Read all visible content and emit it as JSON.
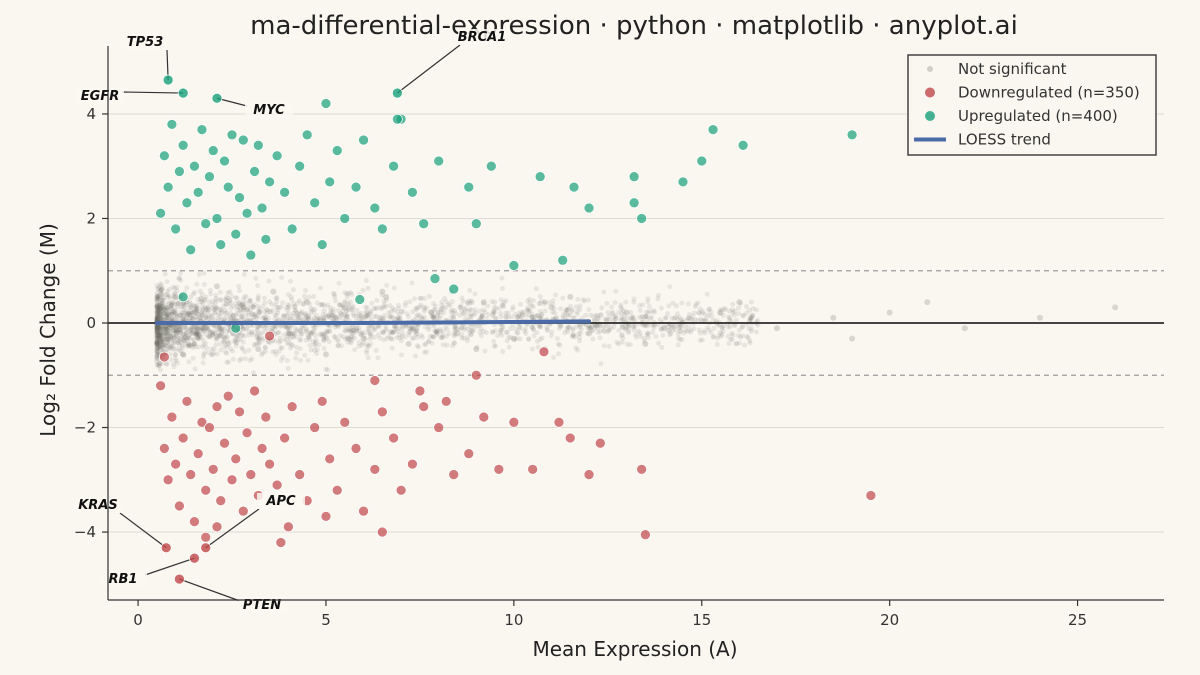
{
  "chart_data": {
    "type": "scatter",
    "title": "ma-differential-expression · python · matplotlib · anyplot.ai",
    "xlabel": "Mean Expression (A)",
    "ylabel": "Log₂ Fold Change (M)",
    "xlim": [
      -0.8,
      27.3
    ],
    "ylim": [
      -5.3,
      5.3
    ],
    "x_ticks": [
      0,
      5,
      10,
      15,
      20,
      25
    ],
    "y_ticks": [
      -4,
      -2,
      0,
      2,
      4
    ],
    "threshold_lines": [
      -1,
      1
    ],
    "grid": "horizontal",
    "legend_position": "top-right",
    "colors": {
      "not_significant": "#9a978f",
      "downregulated": "#c0464a",
      "upregulated": "#16a07a",
      "loess": "#4a6aa8",
      "background": "#faf7f1"
    },
    "series": [
      {
        "name": "Not significant",
        "note_sampled": true,
        "points": [
          [
            0.6,
            0.1
          ],
          [
            0.8,
            -0.3
          ],
          [
            1.0,
            0.5
          ],
          [
            1.2,
            -0.6
          ],
          [
            1.5,
            0.2
          ],
          [
            1.8,
            -0.1
          ],
          [
            2.1,
            0.7
          ],
          [
            2.4,
            -0.4
          ],
          [
            2.8,
            0.3
          ],
          [
            3.2,
            -0.5
          ],
          [
            3.6,
            0.6
          ],
          [
            4.0,
            -0.2
          ],
          [
            4.5,
            0.4
          ],
          [
            5.0,
            -0.6
          ],
          [
            5.5,
            0.3
          ],
          [
            6.0,
            -0.3
          ],
          [
            6.6,
            0.5
          ],
          [
            7.2,
            -0.4
          ],
          [
            7.8,
            0.2
          ],
          [
            8.5,
            -0.2
          ],
          [
            9.2,
            0.4
          ],
          [
            10.0,
            -0.3
          ],
          [
            11.0,
            0.3
          ],
          [
            12.0,
            -0.2
          ],
          [
            13.0,
            0.2
          ],
          [
            14.0,
            -0.1
          ],
          [
            15.5,
            0.2
          ],
          [
            17.0,
            -0.1
          ],
          [
            18.5,
            0.1
          ],
          [
            20.0,
            0.2
          ],
          [
            22.0,
            -0.1
          ],
          [
            24.0,
            0.1
          ],
          [
            26.0,
            0.3
          ],
          [
            6.5,
            0.6
          ],
          [
            9.0,
            -0.5
          ],
          [
            11.5,
            0.5
          ],
          [
            13.5,
            -0.4
          ],
          [
            16.0,
            0.4
          ],
          [
            19.0,
            -0.3
          ],
          [
            21.0,
            0.4
          ]
        ]
      },
      {
        "name": "Downregulated (n=350)",
        "note_sampled": true,
        "points": [
          [
            0.6,
            -1.2
          ],
          [
            0.7,
            -2.4
          ],
          [
            0.8,
            -3.0
          ],
          [
            0.9,
            -1.8
          ],
          [
            1.0,
            -2.7
          ],
          [
            1.1,
            -3.5
          ],
          [
            1.2,
            -2.2
          ],
          [
            1.3,
            -1.5
          ],
          [
            1.4,
            -2.9
          ],
          [
            1.5,
            -3.8
          ],
          [
            1.6,
            -2.5
          ],
          [
            1.7,
            -1.9
          ],
          [
            1.8,
            -3.2
          ],
          [
            1.9,
            -2.0
          ],
          [
            2.0,
            -2.8
          ],
          [
            2.1,
            -1.6
          ],
          [
            2.2,
            -3.4
          ],
          [
            2.3,
            -2.3
          ],
          [
            2.4,
            -1.4
          ],
          [
            2.5,
            -3.0
          ],
          [
            2.6,
            -2.6
          ],
          [
            2.7,
            -1.7
          ],
          [
            2.8,
            -3.6
          ],
          [
            2.9,
            -2.1
          ],
          [
            3.0,
            -2.9
          ],
          [
            3.1,
            -1.3
          ],
          [
            3.2,
            -3.3
          ],
          [
            3.3,
            -2.4
          ],
          [
            3.4,
            -1.8
          ],
          [
            3.5,
            -2.7
          ],
          [
            3.7,
            -3.1
          ],
          [
            3.9,
            -2.2
          ],
          [
            4.1,
            -1.6
          ],
          [
            4.3,
            -2.9
          ],
          [
            4.5,
            -3.4
          ],
          [
            4.7,
            -2.0
          ],
          [
            4.9,
            -1.5
          ],
          [
            5.1,
            -2.6
          ],
          [
            5.3,
            -3.2
          ],
          [
            5.5,
            -1.9
          ],
          [
            5.8,
            -2.4
          ],
          [
            6.0,
            -3.6
          ],
          [
            6.3,
            -2.8
          ],
          [
            6.5,
            -1.7
          ],
          [
            6.8,
            -2.2
          ],
          [
            7.0,
            -3.2
          ],
          [
            7.3,
            -2.7
          ],
          [
            7.6,
            -1.6
          ],
          [
            8.0,
            -2.0
          ],
          [
            8.4,
            -2.9
          ],
          [
            8.8,
            -2.5
          ],
          [
            9.2,
            -1.8
          ],
          [
            9.6,
            -2.8
          ],
          [
            10.0,
            -1.9
          ],
          [
            10.5,
            -2.8
          ],
          [
            11.2,
            -1.9
          ],
          [
            11.5,
            -2.2
          ],
          [
            12.0,
            -2.9
          ],
          [
            12.3,
            -2.3
          ],
          [
            13.4,
            -2.8
          ],
          [
            13.5,
            -4.05
          ],
          [
            19.5,
            -3.3
          ],
          [
            10.8,
            -0.55
          ],
          [
            3.5,
            -0.25
          ],
          [
            0.7,
            -0.65
          ],
          [
            6.3,
            -1.1
          ],
          [
            7.5,
            -1.3
          ],
          [
            8.2,
            -1.5
          ],
          [
            9.0,
            -1.0
          ],
          [
            4.0,
            -3.9
          ],
          [
            6.5,
            -4.0
          ],
          [
            5.0,
            -3.7
          ],
          [
            3.8,
            -4.2
          ],
          [
            1.8,
            -4.1
          ],
          [
            2.1,
            -3.9
          ]
        ]
      },
      {
        "name": "Upregulated (n=400)",
        "note_sampled": true,
        "points": [
          [
            0.6,
            2.1
          ],
          [
            0.7,
            3.2
          ],
          [
            0.8,
            2.6
          ],
          [
            0.9,
            3.8
          ],
          [
            1.0,
            1.8
          ],
          [
            1.1,
            2.9
          ],
          [
            1.2,
            3.4
          ],
          [
            1.3,
            2.3
          ],
          [
            1.4,
            1.4
          ],
          [
            1.5,
            3.0
          ],
          [
            1.6,
            2.5
          ],
          [
            1.7,
            3.7
          ],
          [
            1.8,
            1.9
          ],
          [
            1.9,
            2.8
          ],
          [
            2.0,
            3.3
          ],
          [
            2.1,
            2.0
          ],
          [
            2.2,
            1.5
          ],
          [
            2.3,
            3.1
          ],
          [
            2.4,
            2.6
          ],
          [
            2.5,
            3.6
          ],
          [
            2.6,
            1.7
          ],
          [
            2.7,
            2.4
          ],
          [
            2.8,
            3.5
          ],
          [
            2.9,
            2.1
          ],
          [
            3.0,
            1.3
          ],
          [
            3.1,
            2.9
          ],
          [
            3.2,
            3.4
          ],
          [
            3.3,
            2.2
          ],
          [
            3.4,
            1.6
          ],
          [
            3.5,
            2.7
          ],
          [
            3.7,
            3.2
          ],
          [
            3.9,
            2.5
          ],
          [
            4.1,
            1.8
          ],
          [
            4.3,
            3.0
          ],
          [
            4.5,
            3.6
          ],
          [
            4.7,
            2.3
          ],
          [
            4.9,
            1.5
          ],
          [
            5.1,
            2.7
          ],
          [
            5.3,
            3.3
          ],
          [
            5.5,
            2.0
          ],
          [
            5.8,
            2.6
          ],
          [
            6.0,
            3.5
          ],
          [
            6.3,
            2.2
          ],
          [
            6.5,
            1.8
          ],
          [
            6.8,
            3.0
          ],
          [
            7.0,
            3.9
          ],
          [
            7.3,
            2.5
          ],
          [
            7.6,
            1.9
          ],
          [
            8.0,
            3.1
          ],
          [
            8.4,
            0.65
          ],
          [
            8.8,
            2.6
          ],
          [
            9.0,
            1.9
          ],
          [
            9.4,
            3.0
          ],
          [
            10.0,
            1.1
          ],
          [
            10.7,
            2.8
          ],
          [
            11.3,
            1.2
          ],
          [
            11.6,
            2.6
          ],
          [
            12.0,
            2.2
          ],
          [
            13.2,
            2.8
          ],
          [
            13.2,
            2.3
          ],
          [
            13.4,
            2.0
          ],
          [
            14.5,
            2.7
          ],
          [
            15.0,
            3.1
          ],
          [
            15.3,
            3.7
          ],
          [
            16.1,
            3.4
          ],
          [
            19.0,
            3.6
          ],
          [
            5.0,
            4.2
          ],
          [
            2.6,
            -0.1
          ],
          [
            1.2,
            0.5
          ],
          [
            5.9,
            0.45
          ],
          [
            7.9,
            0.85
          ],
          [
            6.9,
            3.9
          ]
        ]
      }
    ],
    "loess_trend": {
      "name": "LOESS trend",
      "x": [
        0.5,
        2,
        4,
        6,
        8,
        10,
        12
      ],
      "y": [
        0.0,
        0.0,
        0.0,
        0.0,
        0.01,
        0.02,
        0.03
      ]
    },
    "highlighted_genes": [
      {
        "label": "TP53",
        "x": 0.8,
        "y": 4.65
      },
      {
        "label": "BRCA1",
        "x": 6.9,
        "y": 4.4
      },
      {
        "label": "EGFR",
        "x": 1.2,
        "y": 4.4
      },
      {
        "label": "MYC",
        "x": 2.1,
        "y": 4.3
      },
      {
        "label": "KRAS",
        "x": 0.75,
        "y": -4.3
      },
      {
        "label": "APC",
        "x": 1.8,
        "y": -4.3
      },
      {
        "label": "RB1",
        "x": 1.5,
        "y": -4.5
      },
      {
        "label": "PTEN",
        "x": 1.1,
        "y": -4.9
      }
    ]
  }
}
